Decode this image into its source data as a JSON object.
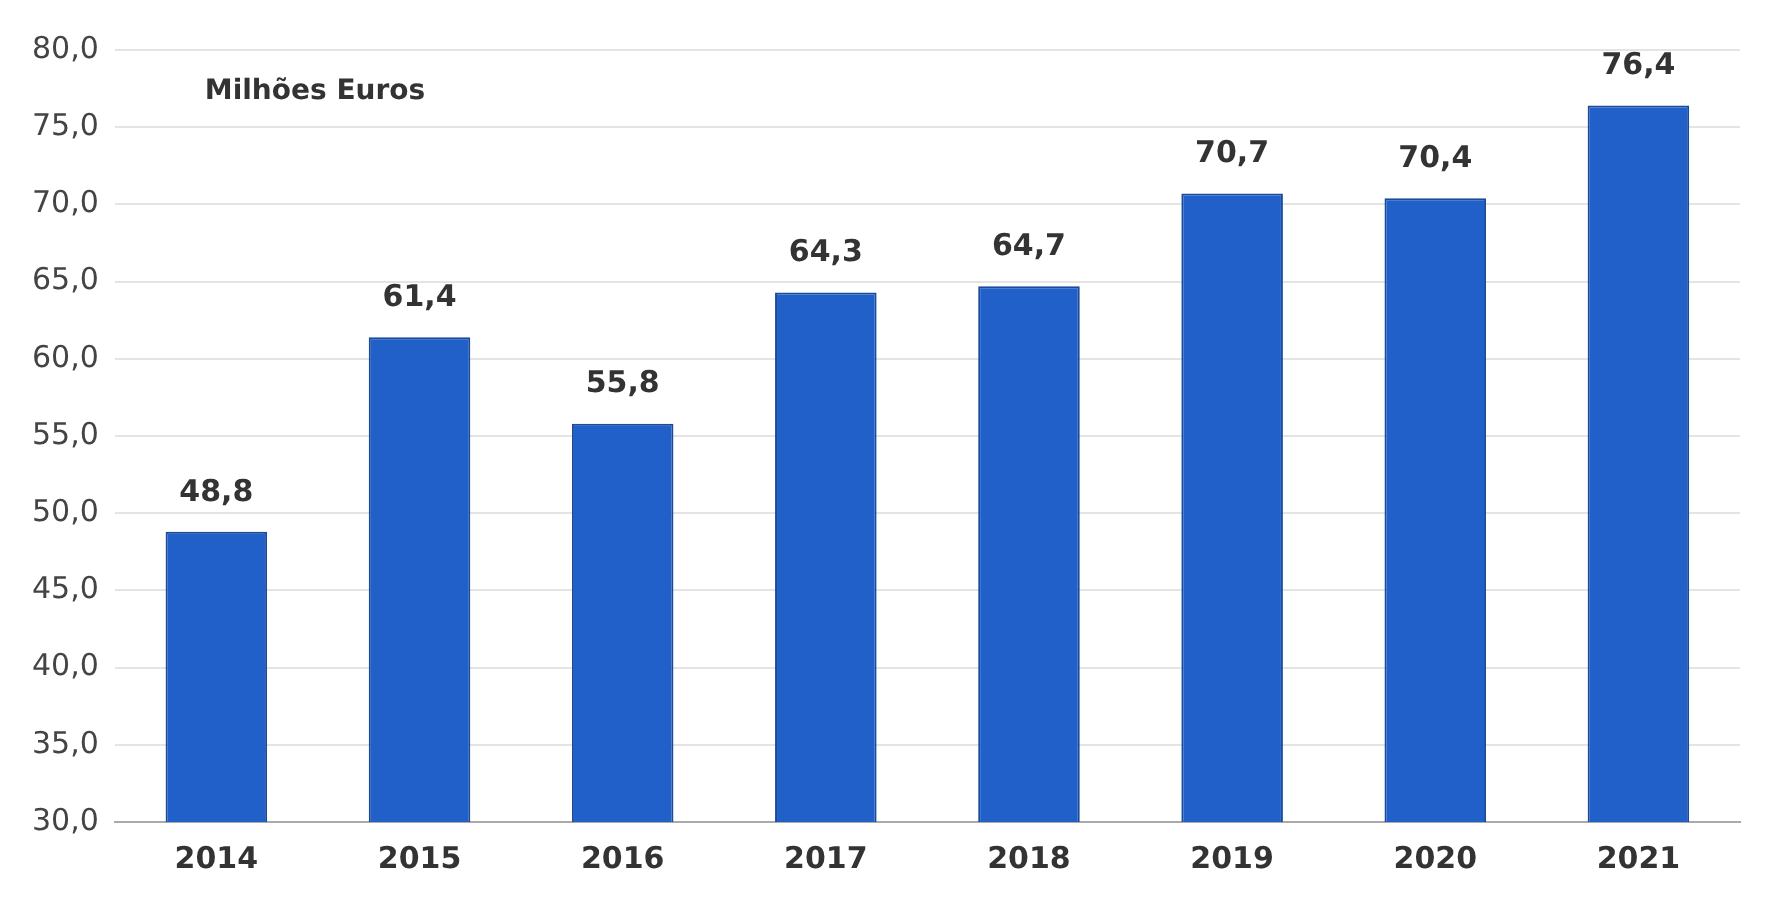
{
  "chart_data": {
    "type": "bar",
    "annotations": [
      "Milhões Euros"
    ],
    "categories": [
      "2014",
      "2015",
      "2016",
      "2017",
      "2018",
      "2019",
      "2020",
      "2021"
    ],
    "values": [
      48.8,
      61.4,
      55.8,
      64.3,
      64.7,
      70.7,
      70.4,
      76.4
    ],
    "value_labels": [
      "48,8",
      "61,4",
      "55,8",
      "64,3",
      "64,7",
      "70,7",
      "70,4",
      "76,4"
    ],
    "color": "#2060c8",
    "ylim": [
      30,
      80
    ],
    "yticks": [
      {
        "value": 30,
        "label": "30,0"
      },
      {
        "value": 35,
        "label": "35,0"
      },
      {
        "value": 40,
        "label": "40,0"
      },
      {
        "value": 45,
        "label": "45,0"
      },
      {
        "value": 50,
        "label": "50,0"
      },
      {
        "value": 55,
        "label": "55,0"
      },
      {
        "value": 60,
        "label": "60,0"
      },
      {
        "value": 65,
        "label": "65,0"
      },
      {
        "value": 70,
        "label": "70,0"
      },
      {
        "value": 75,
        "label": "75,0"
      },
      {
        "value": 80,
        "label": "80,0"
      }
    ],
    "grid": "y",
    "legend": false
  }
}
